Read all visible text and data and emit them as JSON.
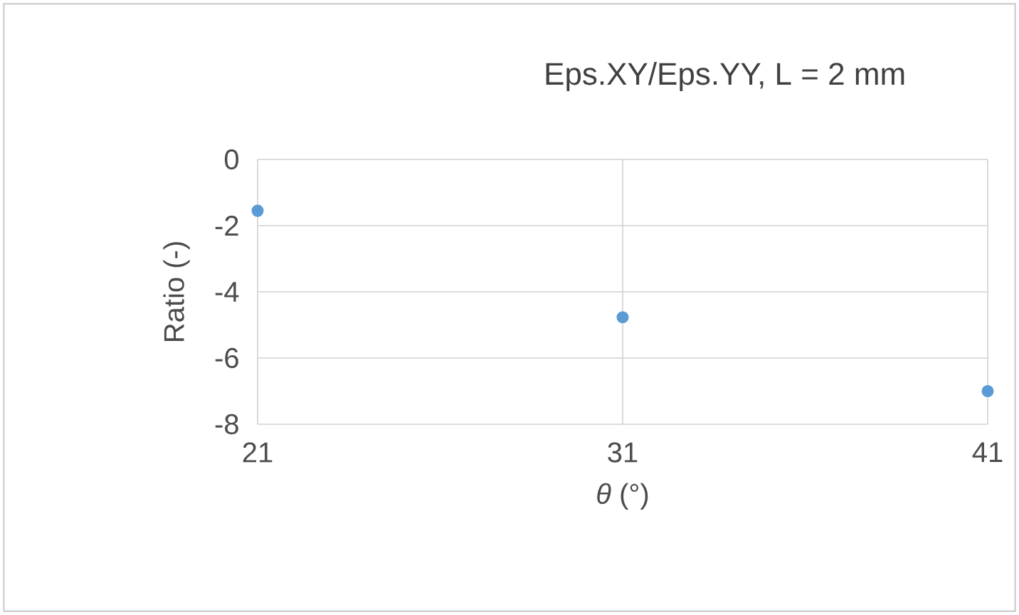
{
  "chart_data": {
    "type": "scatter",
    "title": "Eps.XY/Eps.YY,  L = 2 mm",
    "xlabel": "*θ* (°)",
    "ylabel": "Ratio (-)",
    "x": [
      21,
      31,
      41
    ],
    "series": [
      {
        "color": "#5b9bd5",
        "values": [
          -1.55,
          -4.77,
          -7.0
        ]
      }
    ],
    "xlim": [
      21,
      41
    ],
    "xticks": [
      21,
      31,
      41
    ],
    "ylim": [
      -8,
      0
    ],
    "yticks": [
      -8,
      -6,
      -4,
      -2,
      0
    ],
    "grid": true,
    "marker": "circle"
  }
}
